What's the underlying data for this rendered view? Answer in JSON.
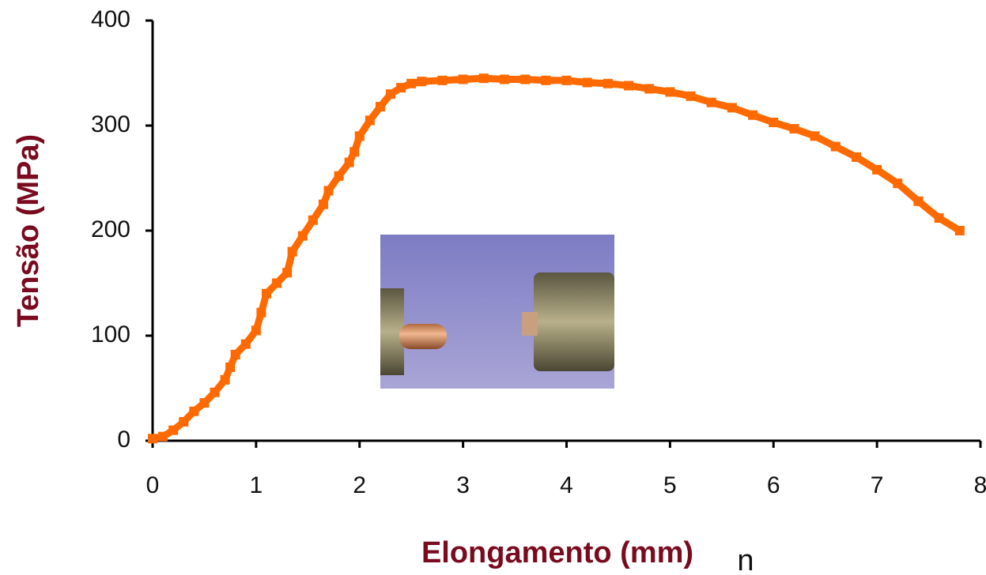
{
  "chart_data": {
    "type": "scatter",
    "x_label": "Elongamento (mm)",
    "y_label": "Tensão (MPa)",
    "annotation": "n",
    "color": "#ff6a00",
    "x": [
      0,
      0.1,
      0.2,
      0.3,
      0.4,
      0.5,
      0.6,
      0.7,
      0.75,
      0.8,
      0.9,
      1.0,
      1.05,
      1.1,
      1.2,
      1.3,
      1.35,
      1.45,
      1.55,
      1.65,
      1.7,
      1.8,
      1.9,
      1.95,
      2.0,
      2.1,
      2.2,
      2.3,
      2.4,
      2.5,
      2.6,
      2.8,
      3.0,
      3.2,
      3.4,
      3.6,
      3.8,
      4.0,
      4.2,
      4.4,
      4.6,
      4.8,
      5.0,
      5.2,
      5.4,
      5.6,
      5.8,
      6.0,
      6.2,
      6.4,
      6.6,
      6.8,
      7.0,
      7.2,
      7.4,
      7.6,
      7.8
    ],
    "values": [
      2,
      4,
      10,
      18,
      28,
      36,
      46,
      58,
      70,
      82,
      92,
      105,
      122,
      140,
      150,
      160,
      180,
      195,
      210,
      225,
      238,
      252,
      265,
      275,
      290,
      305,
      318,
      330,
      336,
      340,
      342,
      343,
      344,
      345,
      344,
      344,
      343,
      343,
      341,
      340,
      338,
      335,
      332,
      328,
      322,
      317,
      310,
      303,
      297,
      290,
      280,
      270,
      258,
      245,
      228,
      212,
      200
    ],
    "xlim": [
      0,
      8
    ],
    "xticks": [
      0,
      1,
      2,
      3,
      4,
      5,
      6,
      7,
      8
    ],
    "ylim": [
      0,
      400
    ],
    "yticks": [
      0,
      100,
      200,
      300,
      400
    ],
    "grid": false
  }
}
